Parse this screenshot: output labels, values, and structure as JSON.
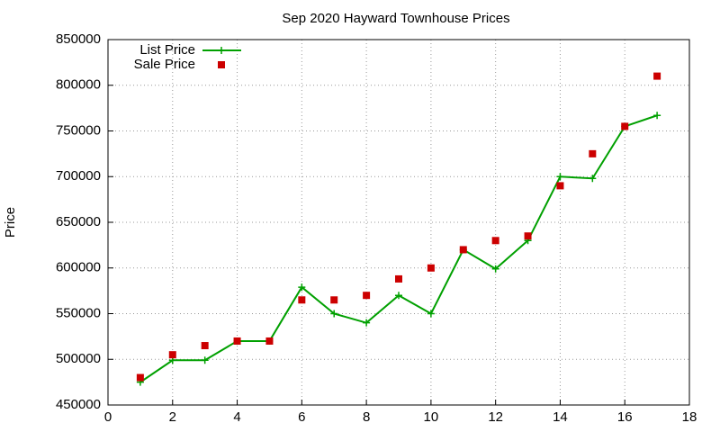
{
  "chart_data": {
    "type": "line",
    "title": "Sep 2020 Hayward Townhouse Prices",
    "ylabel": "Price",
    "x": [
      1,
      2,
      3,
      4,
      5,
      6,
      7,
      8,
      9,
      10,
      11,
      12,
      13,
      14,
      15,
      16,
      17
    ],
    "series": [
      {
        "name": "List Price",
        "color": "#00a000",
        "style": "linespoints",
        "values": [
          475000,
          499000,
          499000,
          520000,
          520000,
          579000,
          550000,
          540000,
          570000,
          550000,
          620000,
          599000,
          630000,
          700000,
          698000,
          755000,
          767000
        ]
      },
      {
        "name": "Sale Price",
        "color": "#cc0000",
        "style": "points",
        "values": [
          480000,
          505000,
          515000,
          520000,
          520000,
          565000,
          565000,
          570000,
          588000,
          600000,
          620000,
          630000,
          635000,
          690000,
          725000,
          755000,
          810000
        ]
      }
    ],
    "xlim": [
      0,
      18
    ],
    "xticks": [
      0,
      2,
      4,
      6,
      8,
      10,
      12,
      14,
      16,
      18
    ],
    "ylim": [
      450000,
      850000
    ],
    "yticks": [
      450000,
      500000,
      550000,
      600000,
      650000,
      700000,
      750000,
      800000,
      850000
    ],
    "grid": true,
    "legend": "top-left"
  }
}
